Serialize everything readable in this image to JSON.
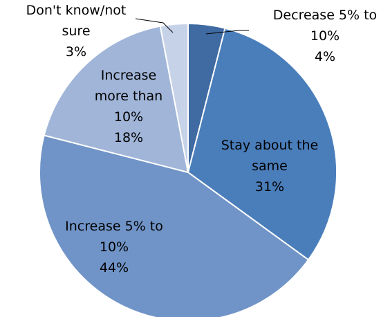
{
  "chart_data": {
    "type": "pie",
    "title": "",
    "start_angle_deg": 0,
    "direction": "clockwise",
    "slices": [
      {
        "label": "Decrease 5% to 10%",
        "value": 4,
        "label_lines": [
          "Decrease 5% to",
          "10%",
          "4%"
        ],
        "color": "#3f6aa2",
        "label_color": "#000000"
      },
      {
        "label": "Stay about the same",
        "value": 31,
        "label_lines": [
          "Stay about the",
          "same",
          "31%"
        ],
        "color": "#4a7ebb",
        "label_color": "#000000"
      },
      {
        "label": "Increase 5% to 10%",
        "value": 44,
        "label_lines": [
          "Increase 5% to",
          "10%",
          "44%"
        ],
        "color": "#7094c7",
        "label_color": "#000000"
      },
      {
        "label": "Increase more than 10%",
        "value": 18,
        "label_lines": [
          "Increase",
          "more than",
          "10%",
          "18%"
        ],
        "color": "#a0b5d8",
        "label_color": "#000000"
      },
      {
        "label": "Don't know/not sure",
        "value": 3,
        "label_lines": [
          "Don't know/not",
          "sure",
          "3%"
        ],
        "color": "#c6d2e7",
        "label_color": "#000000"
      }
    ]
  }
}
